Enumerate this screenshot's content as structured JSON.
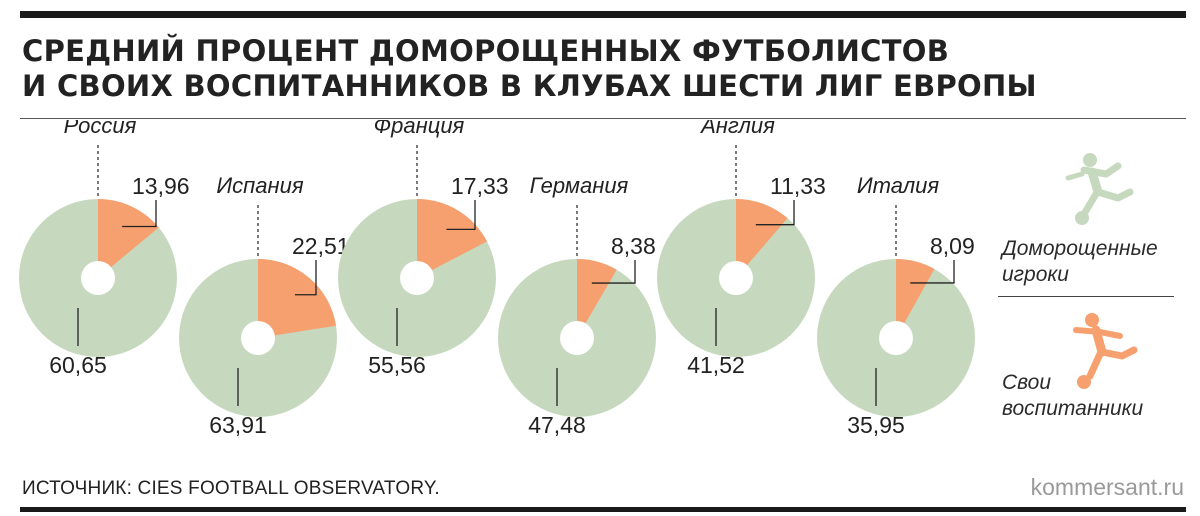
{
  "title": {
    "line1": "СРЕДНИЙ ПРОЦЕНТ ДОМОРОЩЕННЫХ ФУТБОЛИСТОВ",
    "line2": "И СВОИХ ВОСПИТАННИКОВ В КЛУБАХ ШЕСТИ  ЛИГ ЕВРОПЫ"
  },
  "legend": {
    "home_grown": "Доморощенные игроки",
    "own_trainees": "Свои воспитанники",
    "home_grown_color": "#c6d9bf",
    "own_trainees_color": "#f6a06f"
  },
  "source": "ИСТОЧНИК: CIES FOOTBALL OBSERVATORY.",
  "brand": "kommersant.ru",
  "chart_data": {
    "type": "pie",
    "title": "СРЕДНИЙ ПРОЦЕНТ ДОМОРОЩЕННЫХ ФУТБОЛИСТОВ И СВОИХ ВОСПИТАННИКОВ В КЛУБАХ ШЕСТИ  ЛИГ ЕВРОПЫ",
    "series_names": [
      "Свои воспитанники",
      "Доморощенные игроки"
    ],
    "pies": [
      {
        "name": "Россия",
        "own": 13.96,
        "home": 60.65,
        "own_label": "13,96",
        "home_label": "60,65"
      },
      {
        "name": "Испания",
        "own": 22.51,
        "home": 63.91,
        "own_label": "22,51",
        "home_label": "63,91"
      },
      {
        "name": "Франция",
        "own": 17.33,
        "home": 55.56,
        "own_label": "17,33",
        "home_label": "55,56"
      },
      {
        "name": "Германия",
        "own": 8.38,
        "home": 47.48,
        "own_label": "8,38",
        "home_label": "47,48"
      },
      {
        "name": "Англия",
        "own": 11.33,
        "home": 41.52,
        "own_label": "11,33",
        "home_label": "41,52"
      },
      {
        "name": "Италия",
        "own": 8.09,
        "home": 35.95,
        "own_label": "8,09",
        "home_label": "35,95"
      }
    ]
  }
}
